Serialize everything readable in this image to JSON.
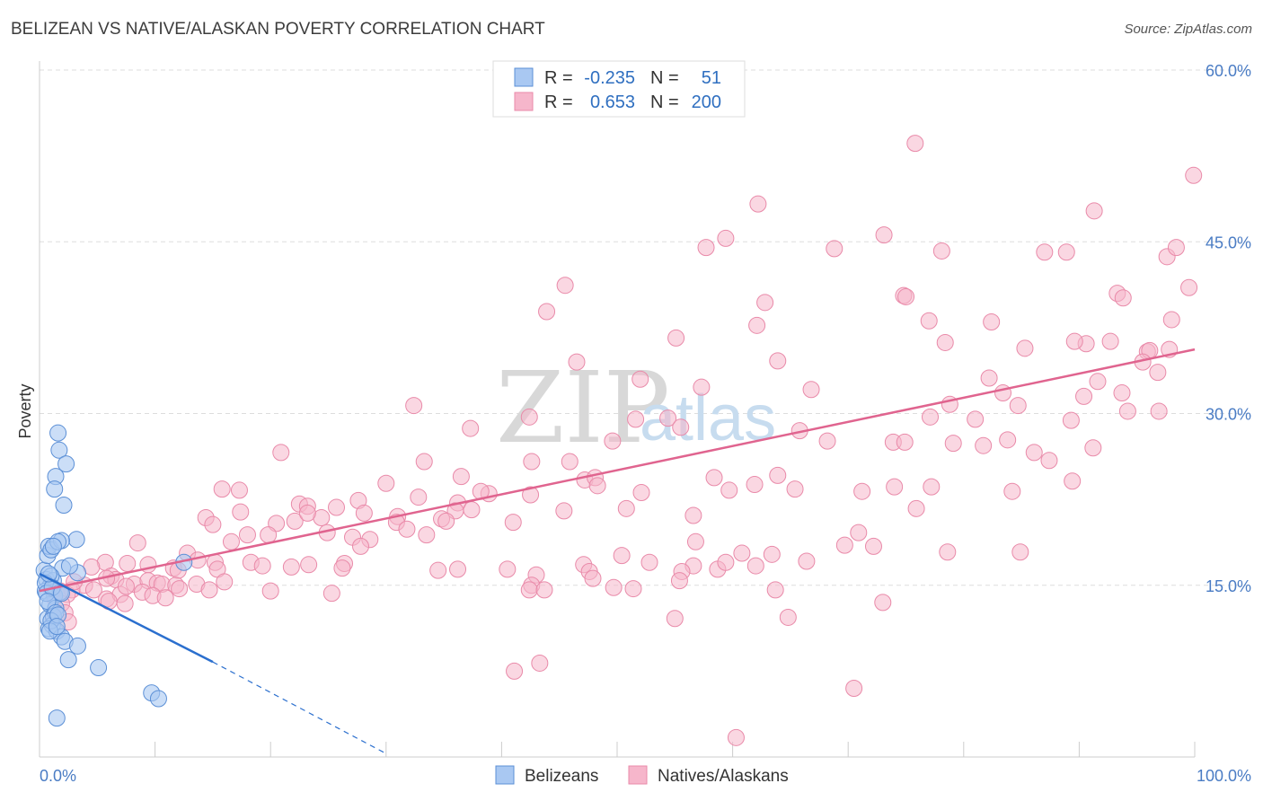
{
  "title": "BELIZEAN VS NATIVE/ALASKAN POVERTY CORRELATION CHART",
  "source": "Source: ZipAtlas.com",
  "watermark": {
    "zip": "ZIP",
    "atlas": "atlas"
  },
  "legend": {
    "row1": {
      "r_label": "R =",
      "r_value": "-0.235",
      "n_label": "N =",
      "n_value": "51"
    },
    "row2": {
      "r_label": "R =",
      "r_value": "0.653",
      "n_label": "N =",
      "n_value": "200"
    }
  },
  "bottom_legend": [
    "Belizeans",
    "Natives/Alaskans"
  ],
  "colors": {
    "blue_fill": "#a9c8f2",
    "blue_stroke": "#5b8fd6",
    "blue_line": "#2b6fce",
    "pink_fill": "#f6b6cb",
    "pink_stroke": "#e98aa9",
    "pink_line": "#e0648f",
    "grid": "#dddddd",
    "tick_text": "#4a7cc4"
  },
  "chart_data": {
    "type": "scatter",
    "title": "BELIZEAN VS NATIVE/ALASKAN POVERTY CORRELATION CHART",
    "xlabel": "",
    "ylabel": "Poverty",
    "xlim": [
      0,
      100
    ],
    "ylim": [
      0,
      60
    ],
    "x_tick_labels": [
      "0.0%",
      "100.0%"
    ],
    "y_ticks": [
      15,
      30,
      45,
      60
    ],
    "y_tick_labels": [
      "15.0%",
      "30.0%",
      "45.0%",
      "60.0%"
    ],
    "grid": true,
    "legend_position": "top-center",
    "series": [
      {
        "name": "Belizeans",
        "r": -0.235,
        "n": 51,
        "trend": {
          "x0": 0,
          "y0": 16.0,
          "x1": 15,
          "y1": 8.3,
          "dash_to_x": 30,
          "dash_to_y": 0.3
        },
        "points": [
          [
            0.4,
            16.3
          ],
          [
            0.7,
            17.6
          ],
          [
            0.8,
            18.4
          ],
          [
            1.0,
            18.1
          ],
          [
            0.6,
            15.5
          ],
          [
            0.9,
            14.9
          ],
          [
            1.2,
            15.4
          ],
          [
            0.5,
            14.5
          ],
          [
            1.3,
            14.1
          ],
          [
            1.8,
            14.4
          ],
          [
            0.9,
            13.3
          ],
          [
            1.4,
            13.0
          ],
          [
            0.7,
            12.1
          ],
          [
            1.2,
            12.3
          ],
          [
            1.1,
            11.5
          ],
          [
            0.8,
            11.2
          ],
          [
            1.5,
            11.0
          ],
          [
            1.9,
            10.5
          ],
          [
            2.2,
            10.1
          ],
          [
            3.3,
            9.7
          ],
          [
            2.5,
            8.5
          ],
          [
            5.1,
            7.8
          ],
          [
            1.7,
            26.8
          ],
          [
            1.6,
            28.3
          ],
          [
            2.3,
            25.6
          ],
          [
            1.4,
            24.5
          ],
          [
            1.3,
            23.4
          ],
          [
            2.1,
            22.0
          ],
          [
            3.2,
            19.0
          ],
          [
            1.9,
            18.9
          ],
          [
            1.6,
            18.8
          ],
          [
            1.2,
            18.4
          ],
          [
            3.3,
            16.1
          ],
          [
            2.0,
            16.5
          ],
          [
            1.0,
            15.8
          ],
          [
            0.5,
            15.2
          ],
          [
            0.6,
            14.3
          ],
          [
            1.1,
            14.8
          ],
          [
            0.7,
            13.6
          ],
          [
            1.4,
            12.6
          ],
          [
            1.0,
            11.9
          ],
          [
            1.6,
            12.4
          ],
          [
            0.9,
            11.0
          ],
          [
            1.5,
            11.4
          ],
          [
            9.7,
            5.6
          ],
          [
            10.3,
            5.1
          ],
          [
            1.5,
            3.4
          ],
          [
            12.5,
            17.0
          ],
          [
            2.6,
            16.7
          ],
          [
            1.9,
            14.3
          ],
          [
            0.8,
            16.0
          ]
        ]
      },
      {
        "name": "Natives/Alaskans",
        "r": 0.653,
        "n": 200,
        "trend": {
          "x0": 0,
          "y0": 14.5,
          "x1": 100,
          "y1": 35.6
        },
        "points": [
          [
            75.8,
            53.6
          ],
          [
            99.9,
            50.8
          ],
          [
            62.2,
            48.3
          ],
          [
            91.3,
            47.7
          ],
          [
            59.4,
            45.3
          ],
          [
            73.1,
            45.6
          ],
          [
            57.7,
            44.5
          ],
          [
            68.8,
            44.4
          ],
          [
            78.1,
            44.2
          ],
          [
            87.0,
            44.1
          ],
          [
            88.9,
            44.1
          ],
          [
            97.6,
            43.7
          ],
          [
            98.4,
            44.5
          ],
          [
            45.5,
            41.2
          ],
          [
            99.5,
            41.0
          ],
          [
            93.3,
            40.5
          ],
          [
            74.8,
            40.3
          ],
          [
            75.0,
            40.2
          ],
          [
            62.8,
            39.7
          ],
          [
            93.8,
            40.1
          ],
          [
            43.9,
            38.9
          ],
          [
            62.1,
            37.7
          ],
          [
            77.0,
            38.1
          ],
          [
            82.4,
            38.0
          ],
          [
            98.0,
            38.2
          ],
          [
            55.1,
            36.6
          ],
          [
            78.4,
            36.2
          ],
          [
            90.6,
            36.1
          ],
          [
            89.6,
            36.3
          ],
          [
            85.3,
            35.7
          ],
          [
            92.7,
            36.3
          ],
          [
            95.9,
            35.4
          ],
          [
            97.8,
            35.6
          ],
          [
            96.1,
            35.5
          ],
          [
            46.5,
            34.5
          ],
          [
            63.9,
            34.6
          ],
          [
            95.5,
            34.5
          ],
          [
            96.8,
            33.6
          ],
          [
            52.0,
            33.0
          ],
          [
            82.2,
            33.1
          ],
          [
            91.6,
            32.8
          ],
          [
            57.3,
            32.3
          ],
          [
            66.8,
            32.1
          ],
          [
            83.4,
            31.8
          ],
          [
            90.4,
            31.5
          ],
          [
            93.7,
            31.8
          ],
          [
            32.4,
            30.7
          ],
          [
            84.7,
            30.7
          ],
          [
            78.8,
            30.8
          ],
          [
            94.2,
            30.2
          ],
          [
            96.9,
            30.2
          ],
          [
            42.4,
            29.7
          ],
          [
            54.4,
            29.6
          ],
          [
            51.6,
            29.5
          ],
          [
            55.5,
            28.8
          ],
          [
            77.1,
            29.7
          ],
          [
            81.0,
            29.5
          ],
          [
            89.3,
            29.4
          ],
          [
            37.3,
            28.7
          ],
          [
            65.8,
            28.5
          ],
          [
            49.6,
            27.6
          ],
          [
            68.2,
            27.6
          ],
          [
            73.9,
            27.5
          ],
          [
            74.9,
            27.5
          ],
          [
            79.1,
            27.4
          ],
          [
            81.7,
            27.2
          ],
          [
            83.8,
            27.7
          ],
          [
            86.1,
            26.6
          ],
          [
            91.2,
            27.0
          ],
          [
            20.9,
            26.6
          ],
          [
            33.3,
            25.8
          ],
          [
            42.6,
            25.8
          ],
          [
            45.9,
            25.8
          ],
          [
            87.4,
            25.9
          ],
          [
            36.5,
            24.5
          ],
          [
            47.2,
            24.2
          ],
          [
            48.1,
            24.4
          ],
          [
            58.4,
            24.4
          ],
          [
            63.9,
            24.6
          ],
          [
            65.4,
            23.4
          ],
          [
            61.9,
            23.8
          ],
          [
            48.3,
            23.7
          ],
          [
            52.1,
            23.1
          ],
          [
            59.7,
            23.3
          ],
          [
            71.2,
            23.2
          ],
          [
            74.0,
            23.6
          ],
          [
            77.2,
            23.6
          ],
          [
            84.2,
            23.2
          ],
          [
            89.4,
            24.1
          ],
          [
            15.8,
            23.4
          ],
          [
            30.0,
            23.9
          ],
          [
            38.9,
            23.0
          ],
          [
            38.2,
            23.2
          ],
          [
            42.5,
            22.9
          ],
          [
            32.8,
            22.7
          ],
          [
            36.2,
            22.2
          ],
          [
            27.6,
            22.4
          ],
          [
            17.3,
            23.3
          ],
          [
            22.5,
            22.1
          ],
          [
            23.2,
            21.9
          ],
          [
            25.7,
            21.8
          ],
          [
            28.1,
            21.3
          ],
          [
            31.0,
            21.0
          ],
          [
            36.0,
            21.5
          ],
          [
            37.4,
            21.6
          ],
          [
            50.8,
            21.7
          ],
          [
            34.8,
            20.8
          ],
          [
            35.2,
            20.6
          ],
          [
            41.0,
            20.5
          ],
          [
            45.4,
            21.5
          ],
          [
            56.6,
            21.1
          ],
          [
            75.9,
            21.7
          ],
          [
            14.4,
            20.9
          ],
          [
            17.4,
            21.4
          ],
          [
            20.5,
            20.4
          ],
          [
            22.1,
            20.6
          ],
          [
            24.4,
            20.9
          ],
          [
            30.9,
            20.5
          ],
          [
            31.8,
            19.9
          ],
          [
            23.2,
            21.3
          ],
          [
            15.0,
            20.3
          ],
          [
            19.8,
            19.4
          ],
          [
            24.9,
            19.6
          ],
          [
            27.1,
            19.2
          ],
          [
            28.6,
            19.0
          ],
          [
            33.5,
            19.4
          ],
          [
            70.9,
            19.6
          ],
          [
            18.0,
            19.4
          ],
          [
            8.5,
            18.7
          ],
          [
            16.6,
            18.8
          ],
          [
            27.8,
            18.4
          ],
          [
            56.8,
            18.8
          ],
          [
            69.7,
            18.5
          ],
          [
            72.2,
            18.4
          ],
          [
            63.4,
            17.7
          ],
          [
            50.4,
            17.6
          ],
          [
            60.8,
            17.8
          ],
          [
            78.6,
            17.9
          ],
          [
            84.9,
            17.9
          ],
          [
            12.8,
            17.8
          ],
          [
            15.2,
            17.0
          ],
          [
            13.7,
            17.2
          ],
          [
            18.3,
            17.0
          ],
          [
            26.4,
            16.9
          ],
          [
            36.2,
            16.4
          ],
          [
            47.1,
            16.8
          ],
          [
            52.8,
            17.0
          ],
          [
            56.6,
            16.7
          ],
          [
            62.0,
            16.7
          ],
          [
            66.4,
            17.1
          ],
          [
            23.3,
            16.8
          ],
          [
            5.7,
            17.0
          ],
          [
            7.6,
            16.9
          ],
          [
            9.4,
            16.8
          ],
          [
            11.6,
            16.5
          ],
          [
            12.0,
            16.3
          ],
          [
            15.4,
            16.4
          ],
          [
            16.0,
            15.3
          ],
          [
            19.3,
            16.7
          ],
          [
            21.8,
            16.6
          ],
          [
            34.5,
            16.3
          ],
          [
            40.5,
            16.4
          ],
          [
            47.6,
            16.2
          ],
          [
            55.6,
            16.2
          ],
          [
            58.7,
            16.4
          ],
          [
            43.0,
            15.9
          ],
          [
            55.4,
            15.4
          ],
          [
            47.9,
            15.6
          ],
          [
            63.7,
            14.6
          ],
          [
            6.2,
            15.8
          ],
          [
            6.6,
            15.5
          ],
          [
            3.9,
            15.0
          ],
          [
            4.7,
            14.6
          ],
          [
            5.8,
            15.6
          ],
          [
            8.2,
            15.1
          ],
          [
            9.4,
            15.4
          ],
          [
            10.2,
            15.2
          ],
          [
            10.6,
            15.1
          ],
          [
            11.8,
            15.0
          ],
          [
            8.9,
            14.4
          ],
          [
            9.8,
            14.1
          ],
          [
            5.8,
            13.8
          ],
          [
            7.0,
            14.2
          ],
          [
            10.9,
            13.9
          ],
          [
            12.1,
            14.7
          ],
          [
            13.6,
            15.1
          ],
          [
            42.6,
            15.0
          ],
          [
            42.4,
            14.6
          ],
          [
            43.7,
            14.6
          ],
          [
            51.4,
            14.7
          ],
          [
            49.7,
            14.8
          ],
          [
            26.2,
            16.5
          ],
          [
            59.4,
            17.0
          ],
          [
            1.8,
            14.5
          ],
          [
            2.8,
            14.6
          ],
          [
            2.4,
            14.2
          ],
          [
            1.3,
            13.9
          ],
          [
            1.9,
            13.4
          ],
          [
            2.2,
            12.6
          ],
          [
            1.2,
            12.2
          ],
          [
            2.5,
            11.8
          ],
          [
            6.0,
            13.6
          ],
          [
            7.4,
            13.4
          ],
          [
            14.7,
            14.6
          ],
          [
            64.8,
            12.2
          ],
          [
            55.0,
            12.1
          ],
          [
            73.0,
            13.5
          ],
          [
            43.3,
            8.2
          ],
          [
            41.1,
            7.5
          ],
          [
            70.5,
            6.0
          ],
          [
            60.3,
            1.7
          ],
          [
            4.5,
            16.6
          ],
          [
            3.0,
            15.3
          ],
          [
            7.5,
            14.9
          ],
          [
            25.3,
            14.3
          ],
          [
            20.0,
            14.5
          ]
        ]
      }
    ]
  }
}
